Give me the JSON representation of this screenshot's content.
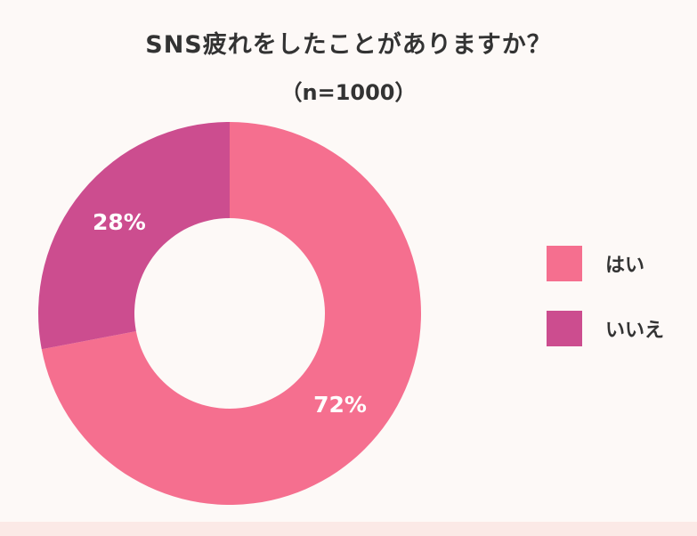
{
  "chart_data": {
    "type": "pie",
    "title": "SNS疲れをしたことがありますか？",
    "subtitle": "（n=1000）",
    "categories": [
      "はい",
      "いいえ"
    ],
    "values": [
      72,
      28
    ],
    "value_labels": [
      "72%",
      "28%"
    ],
    "colors": [
      "#f56f8f",
      "#cc4d8f"
    ],
    "donut": true,
    "legend_position": "right"
  }
}
